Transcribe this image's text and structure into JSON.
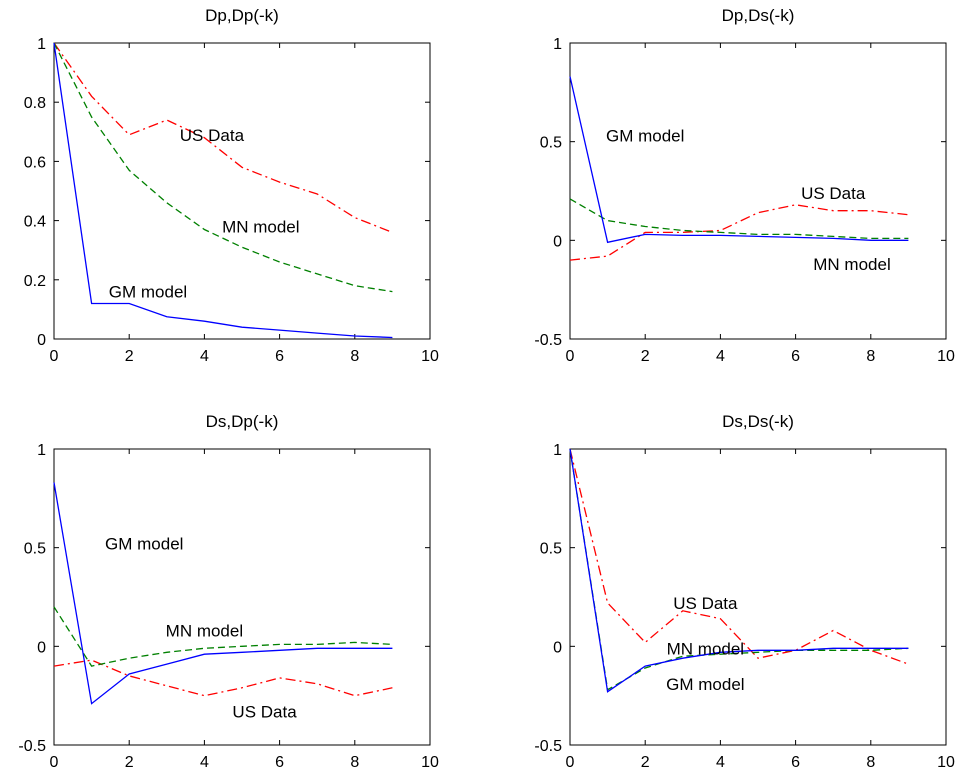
{
  "chart_data": [
    {
      "type": "line",
      "title": "Dp,Dp(-k)",
      "xlim": [
        0,
        10
      ],
      "ylim": [
        0,
        1
      ],
      "xticks": [
        "0",
        "2",
        "4",
        "6",
        "8",
        "10"
      ],
      "yticks": [
        "0",
        "0.2",
        "0.4",
        "0.6",
        "0.8",
        "1"
      ],
      "x": [
        0,
        1,
        2,
        3,
        4,
        5,
        6,
        7,
        8,
        9
      ],
      "series": [
        {
          "key": "us",
          "color": "#ff0000",
          "dash": "dashdot",
          "values": [
            1.0,
            0.82,
            0.69,
            0.74,
            0.68,
            0.58,
            0.53,
            0.49,
            0.41,
            0.36
          ]
        },
        {
          "key": "mn",
          "color": "#008000",
          "dash": "dashed",
          "values": [
            1.0,
            0.75,
            0.57,
            0.46,
            0.37,
            0.31,
            0.26,
            0.22,
            0.18,
            0.16
          ]
        },
        {
          "key": "gm",
          "color": "#0000ff",
          "dash": "solid",
          "values": [
            1.0,
            0.12,
            0.12,
            0.075,
            0.06,
            0.04,
            0.03,
            0.02,
            0.01,
            0.005
          ]
        }
      ],
      "annotations": [
        {
          "text": "US Data",
          "x": 4.2,
          "y": 0.69
        },
        {
          "text": "MN model",
          "x": 5.5,
          "y": 0.38
        },
        {
          "text": "GM model",
          "x": 2.5,
          "y": 0.16
        }
      ]
    },
    {
      "type": "line",
      "title": "Dp,Ds(-k)",
      "xlim": [
        0,
        10
      ],
      "ylim": [
        -0.5,
        1
      ],
      "xticks": [
        "0",
        "2",
        "4",
        "6",
        "8",
        "10"
      ],
      "yticks": [
        "-0.5",
        "0",
        "0.5",
        "1"
      ],
      "x": [
        0,
        1,
        2,
        3,
        4,
        5,
        6,
        7,
        8,
        9
      ],
      "series": [
        {
          "key": "us",
          "color": "#ff0000",
          "dash": "dashdot",
          "values": [
            -0.1,
            -0.08,
            0.04,
            0.04,
            0.05,
            0.14,
            0.18,
            0.15,
            0.15,
            0.13
          ]
        },
        {
          "key": "mn",
          "color": "#008000",
          "dash": "dashed",
          "values": [
            0.21,
            0.1,
            0.07,
            0.05,
            0.04,
            0.03,
            0.03,
            0.02,
            0.01,
            0.01
          ]
        },
        {
          "key": "gm",
          "color": "#0000ff",
          "dash": "solid",
          "values": [
            0.83,
            -0.01,
            0.03,
            0.025,
            0.025,
            0.02,
            0.015,
            0.01,
            0.0,
            0.0
          ]
        }
      ],
      "annotations": [
        {
          "text": "GM model",
          "x": 2.0,
          "y": 0.53
        },
        {
          "text": "US Data",
          "x": 7.0,
          "y": 0.24
        },
        {
          "text": "MN model",
          "x": 7.5,
          "y": -0.12
        }
      ]
    },
    {
      "type": "line",
      "title": "Ds,Dp(-k)",
      "xlim": [
        0,
        10
      ],
      "ylim": [
        -0.5,
        1
      ],
      "xticks": [
        "0",
        "2",
        "4",
        "6",
        "8",
        "10"
      ],
      "yticks": [
        "-0.5",
        "0",
        "0.5",
        "1"
      ],
      "x": [
        0,
        1,
        2,
        3,
        4,
        5,
        6,
        7,
        8,
        9
      ],
      "series": [
        {
          "key": "us",
          "color": "#ff0000",
          "dash": "dashdot",
          "values": [
            -0.1,
            -0.07,
            -0.15,
            -0.2,
            -0.25,
            -0.21,
            -0.16,
            -0.19,
            -0.25,
            -0.21
          ]
        },
        {
          "key": "mn",
          "color": "#008000",
          "dash": "dashed",
          "values": [
            0.2,
            -0.1,
            -0.06,
            -0.03,
            -0.01,
            0.0,
            0.01,
            0.01,
            0.02,
            0.01
          ]
        },
        {
          "key": "gm",
          "color": "#0000ff",
          "dash": "solid",
          "values": [
            0.83,
            -0.29,
            -0.14,
            -0.09,
            -0.04,
            -0.03,
            -0.02,
            -0.01,
            -0.01,
            -0.01
          ]
        }
      ],
      "annotations": [
        {
          "text": "GM model",
          "x": 2.4,
          "y": 0.52
        },
        {
          "text": "MN model",
          "x": 4.0,
          "y": 0.08
        },
        {
          "text": "US Data",
          "x": 5.6,
          "y": -0.33
        }
      ]
    },
    {
      "type": "line",
      "title": "Ds,Ds(-k)",
      "xlim": [
        0,
        10
      ],
      "ylim": [
        -0.5,
        1
      ],
      "xticks": [
        "0",
        "2",
        "4",
        "6",
        "8",
        "10"
      ],
      "yticks": [
        "-0.5",
        "0",
        "0.5",
        "1"
      ],
      "x": [
        0,
        1,
        2,
        3,
        4,
        5,
        6,
        7,
        8,
        9
      ],
      "series": [
        {
          "key": "us",
          "color": "#ff0000",
          "dash": "dashdot",
          "values": [
            1.0,
            0.22,
            0.02,
            0.18,
            0.14,
            -0.06,
            -0.02,
            0.08,
            -0.02,
            -0.09
          ]
        },
        {
          "key": "mn",
          "color": "#008000",
          "dash": "dashed",
          "values": [
            1.0,
            -0.22,
            -0.11,
            -0.05,
            -0.04,
            -0.03,
            -0.02,
            -0.02,
            -0.02,
            -0.01
          ]
        },
        {
          "key": "gm",
          "color": "#0000ff",
          "dash": "solid",
          "values": [
            1.0,
            -0.23,
            -0.1,
            -0.06,
            -0.03,
            -0.02,
            -0.02,
            -0.01,
            -0.01,
            -0.01
          ]
        }
      ],
      "annotations": [
        {
          "text": "US Data",
          "x": 3.6,
          "y": 0.22
        },
        {
          "text": "MN model",
          "x": 3.6,
          "y": -0.01
        },
        {
          "text": "GM model",
          "x": 3.6,
          "y": -0.19
        }
      ]
    }
  ]
}
